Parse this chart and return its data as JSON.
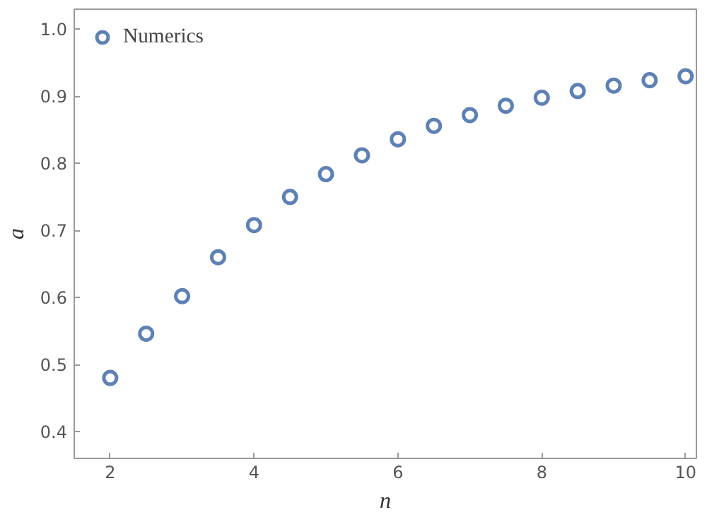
{
  "chart_data": {
    "type": "scatter",
    "xlabel": "n",
    "ylabel": "a",
    "x": [
      2,
      2.5,
      3,
      3.5,
      4,
      4.5,
      5,
      5.5,
      6,
      6.5,
      7,
      7.5,
      8,
      8.5,
      9,
      9.5,
      10
    ],
    "series": [
      {
        "name": "Numerics",
        "color": "#5e81b5",
        "values": [
          0.48,
          0.546,
          0.602,
          0.66,
          0.708,
          0.75,
          0.784,
          0.812,
          0.836,
          0.856,
          0.872,
          0.886,
          0.898,
          0.908,
          0.916,
          0.924,
          0.93
        ]
      }
    ],
    "xlim": [
      1.5,
      10.15
    ],
    "ylim": [
      0.36,
      1.03
    ],
    "xticks": [
      2,
      4,
      6,
      8,
      10
    ],
    "yticks": [
      0.4,
      0.5,
      0.6,
      0.7,
      0.8,
      0.9,
      {
        "value": 1,
        "label": "1.0"
      }
    ],
    "marker": "circle",
    "legend": "top left",
    "grid": false
  }
}
